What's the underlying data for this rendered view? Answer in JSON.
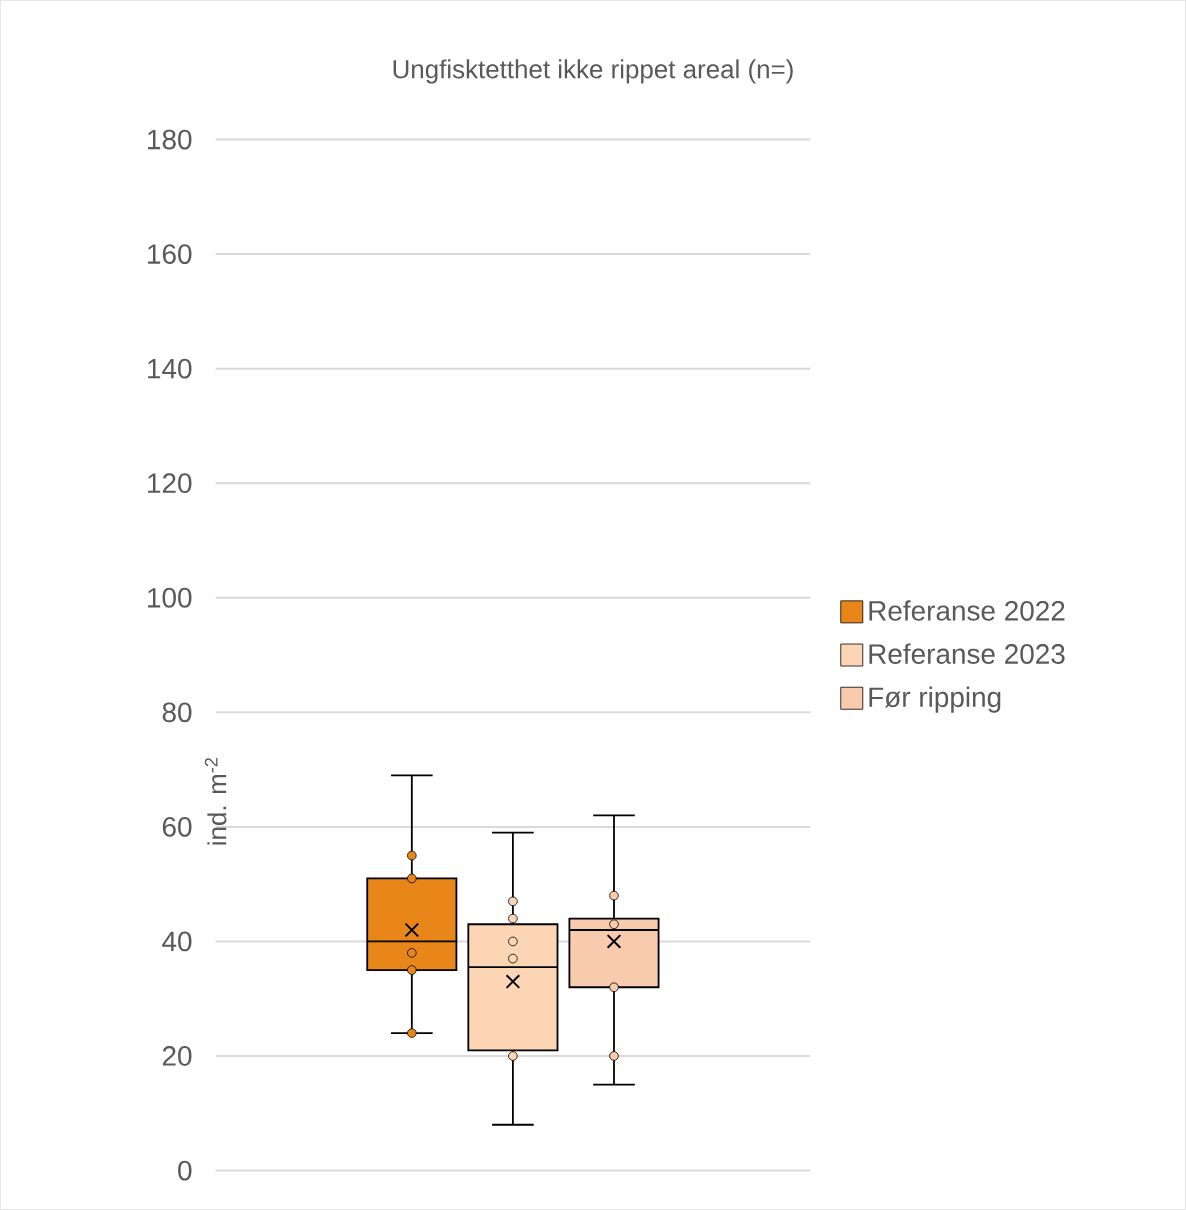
{
  "chart_data": {
    "type": "box",
    "title": "Ungfisktetthet ikke rippet areal  (n=)",
    "ylabel": "ind. m$^{-2}$",
    "categories": [
      null
    ],
    "ylim": [
      0,
      180
    ],
    "yticks": [
      0,
      20,
      40,
      60,
      80,
      100,
      120,
      140,
      160,
      180
    ],
    "grid": "y",
    "legend": "right",
    "marker": "circle",
    "series": [
      {
        "name": "Referanse 2022",
        "color": "#e8861a",
        "boxes": [
          {
            "low": 24,
            "q1": 35,
            "median": 40,
            "q3": 51,
            "high": 69,
            "mean": 42,
            "outliers": [
              55,
              51,
              38,
              35,
              24
            ]
          }
        ]
      },
      {
        "name": "Referanse 2023",
        "color": "#fcd5b4",
        "boxes": [
          {
            "low": 8,
            "q1": 21,
            "median": 35.5,
            "q3": 43,
            "high": 59,
            "mean": 33,
            "outliers": [
              47,
              44,
              40,
              37,
              20
            ]
          }
        ]
      },
      {
        "name": "Før ripping",
        "color": "#f8cbad",
        "boxes": [
          {
            "low": 15,
            "q1": 32,
            "median": 42,
            "q3": 44,
            "high": 62,
            "mean": 40,
            "outliers": [
              48,
              43,
              32,
              20
            ]
          }
        ]
      }
    ]
  }
}
